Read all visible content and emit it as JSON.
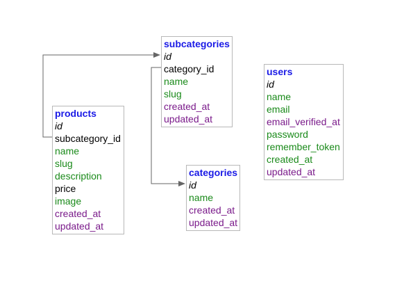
{
  "colors": {
    "table_name": "#1a1ae6",
    "key_field": "#000000",
    "plain_field": "#1a8a1a",
    "timestamp_field": "#7a1a8a",
    "border": "#b8b8b8",
    "connector": "#666666"
  },
  "tables": {
    "products": {
      "name": "products",
      "fields": [
        {
          "text": "id",
          "kind": "pk"
        },
        {
          "text": "subcategory_id",
          "kind": "fk"
        },
        {
          "text": "name",
          "kind": "plain"
        },
        {
          "text": "slug",
          "kind": "plain"
        },
        {
          "text": "description",
          "kind": "plain"
        },
        {
          "text": "price",
          "kind": "num"
        },
        {
          "text": "image",
          "kind": "plain"
        },
        {
          "text": "created_at",
          "kind": "time"
        },
        {
          "text": "updated_at",
          "kind": "time"
        }
      ]
    },
    "subcategories": {
      "name": "subcategories",
      "fields": [
        {
          "text": "id",
          "kind": "pk"
        },
        {
          "text": "category_id",
          "kind": "fk"
        },
        {
          "text": "name",
          "kind": "plain"
        },
        {
          "text": "slug",
          "kind": "plain"
        },
        {
          "text": "created_at",
          "kind": "time"
        },
        {
          "text": "updated_at",
          "kind": "time"
        }
      ]
    },
    "categories": {
      "name": "categories",
      "fields": [
        {
          "text": "id",
          "kind": "pk"
        },
        {
          "text": "name",
          "kind": "plain"
        },
        {
          "text": "created_at",
          "kind": "time"
        },
        {
          "text": "updated_at",
          "kind": "time"
        }
      ]
    },
    "users": {
      "name": "users",
      "fields": [
        {
          "text": "id",
          "kind": "pk"
        },
        {
          "text": "name",
          "kind": "plain"
        },
        {
          "text": "email",
          "kind": "plain"
        },
        {
          "text": "email_verified_at",
          "kind": "time"
        },
        {
          "text": "password",
          "kind": "plain"
        },
        {
          "text": "remember_token",
          "kind": "plain"
        },
        {
          "text": "created_at",
          "kind": "plain"
        },
        {
          "text": "updated_at",
          "kind": "time"
        }
      ]
    }
  },
  "relations": [
    {
      "from_table": "products",
      "from_field": "subcategory_id",
      "to_table": "subcategories",
      "to_field": "id"
    },
    {
      "from_table": "subcategories",
      "from_field": "category_id",
      "to_table": "categories",
      "to_field": "id"
    }
  ]
}
